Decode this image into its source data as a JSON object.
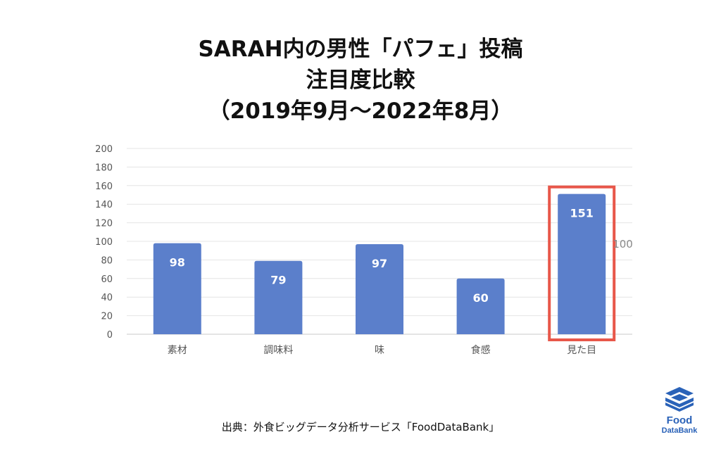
{
  "title": {
    "line1": "SARAH内の男性「パフェ」投稿",
    "line2": "注目度比較",
    "line3": "（2019年9月～2022年8月）"
  },
  "chart_data": {
    "type": "bar",
    "title": "SARAH内の男性「パフェ」投稿 注目度比較（2019年9月～2022年8月）",
    "categories": [
      "素材",
      "調味料",
      "味",
      "食感",
      "見た目"
    ],
    "values": [
      98,
      79,
      97,
      60,
      151
    ],
    "data_labels": [
      "98",
      "79",
      "97",
      "60",
      "151"
    ],
    "y_ticks": [
      "0",
      "20",
      "40",
      "60",
      "80",
      "100",
      "120",
      "140",
      "160",
      "180",
      "200"
    ],
    "ylim": [
      0,
      200
    ],
    "reference_line": {
      "value": 100,
      "label": "100"
    },
    "highlight_category": "見た目",
    "grid": true,
    "legend": "none",
    "xlabel": "",
    "ylabel": "",
    "colors": {
      "bar": "#5b7fcb",
      "highlight_box": "#e8574a",
      "grid": "#e4e4e4"
    }
  },
  "source": "出典：外食ビッグデータ分析サービス「FoodDataBank」",
  "logo": {
    "icon": "fooddatabank-logo-icon",
    "text_line1": "Food",
    "text_line2": "DataBank",
    "color": "#2a62b8"
  }
}
